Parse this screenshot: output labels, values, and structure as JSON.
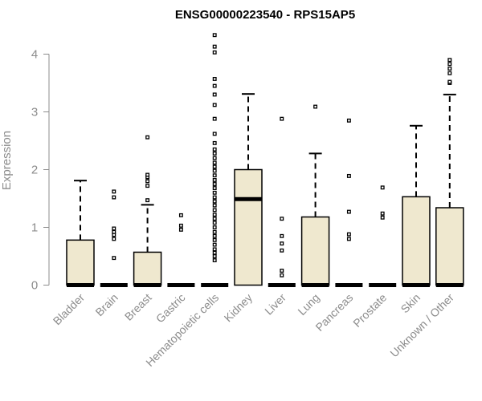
{
  "chart_data": {
    "type": "box",
    "title": "ENSG00000223540 - RPS15AP5",
    "ylabel": "Expression",
    "ylim": [
      0,
      4.4
    ],
    "yticks": [
      0,
      1,
      2,
      3,
      4
    ],
    "box_fill": "#efe8cf",
    "categories": [
      "Bladder",
      "Brain",
      "Breast",
      "Gastric",
      "Hematopoietic cells",
      "Kidney",
      "Liver",
      "Lung",
      "Pancreas",
      "Prostate",
      "Skin",
      "Unknown / Other"
    ],
    "boxes": [
      {
        "q1": 0,
        "median": 0,
        "q3": 0.78,
        "whisker_low": 0,
        "whisker_high": 1.81,
        "outliers": []
      },
      {
        "q1": 0,
        "median": 0,
        "q3": 0,
        "whisker_low": 0,
        "whisker_high": 0,
        "outliers": [
          0.47,
          0.8,
          0.87,
          0.92,
          0.98,
          1.52,
          1.62
        ]
      },
      {
        "q1": 0,
        "median": 0,
        "q3": 0.57,
        "whisker_low": 0,
        "whisker_high": 1.39,
        "outliers": [
          1.47,
          1.72,
          1.8,
          1.87,
          1.91,
          2.56
        ]
      },
      {
        "q1": 0,
        "median": 0,
        "q3": 0,
        "whisker_low": 0,
        "whisker_high": 0,
        "outliers": [
          0.96,
          1.03,
          1.21
        ]
      },
      {
        "q1": 0,
        "median": 0,
        "q3": 0,
        "whisker_low": 0,
        "whisker_high": 0,
        "outliers": [
          0.43,
          0.5,
          0.56,
          0.62,
          0.7,
          0.78,
          0.85,
          0.92,
          1.0,
          1.08,
          1.15,
          1.22,
          1.3,
          1.38,
          1.45,
          1.52,
          1.6,
          1.68,
          1.75,
          1.82,
          1.9,
          1.98,
          2.05,
          2.12,
          2.2,
          2.28,
          2.35,
          2.46,
          2.62,
          2.88,
          3.12,
          3.3,
          3.45,
          3.57,
          4.03,
          4.13,
          4.33
        ]
      },
      {
        "q1": 0,
        "median": 1.49,
        "q3": 2.0,
        "whisker_low": 0,
        "whisker_high": 3.31,
        "outliers": []
      },
      {
        "q1": 0,
        "median": 0,
        "q3": 0,
        "whisker_low": 0,
        "whisker_high": 0,
        "outliers": [
          0.17,
          0.25,
          0.6,
          0.72,
          0.85,
          1.15,
          2.88
        ]
      },
      {
        "q1": 0,
        "median": 0,
        "q3": 1.18,
        "whisker_low": 0,
        "whisker_high": 2.28,
        "outliers": [
          3.09
        ]
      },
      {
        "q1": 0,
        "median": 0,
        "q3": 0,
        "whisker_low": 0,
        "whisker_high": 0,
        "outliers": [
          0.8,
          0.88,
          1.27,
          1.89,
          2.85
        ]
      },
      {
        "q1": 0,
        "median": 0,
        "q3": 0,
        "whisker_low": 0,
        "whisker_high": 0,
        "outliers": [
          1.17,
          1.24,
          1.69
        ]
      },
      {
        "q1": 0,
        "median": 0,
        "q3": 1.53,
        "whisker_low": 0,
        "whisker_high": 2.76,
        "outliers": []
      },
      {
        "q1": 0,
        "median": 0,
        "q3": 1.34,
        "whisker_low": 0,
        "whisker_high": 3.3,
        "outliers": [
          3.5,
          3.52,
          3.67,
          3.75,
          3.83,
          3.9
        ]
      }
    ]
  }
}
